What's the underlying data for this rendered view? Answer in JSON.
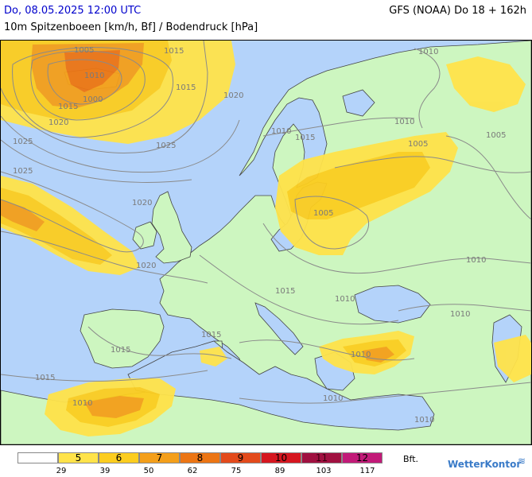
{
  "header": {
    "date": "Do, 08.05.2025 12:00 UTC",
    "model": "GFS (NOAA) Do 18 + 162h",
    "subtitle": "10m Spitzenboeen [km/h, Bf] / Bodendruck [hPa]"
  },
  "colors": {
    "sea": "#b4d3fa",
    "land": "#cdf6c0",
    "bf5": "#ffe34a",
    "bf6": "#fccd1f",
    "bf7": "#f49f1a",
    "bf8": "#ec7514",
    "isobar": "#8a8a8a",
    "border": "#444444"
  },
  "isobar_labels": [
    {
      "text": "1000"
    },
    {
      "text": "1005"
    },
    {
      "text": "1010"
    },
    {
      "text": "1015"
    },
    {
      "text": "1020"
    },
    {
      "text": "1025"
    },
    {
      "text": "1015"
    },
    {
      "text": "1025"
    },
    {
      "text": "1020"
    },
    {
      "text": "1015"
    },
    {
      "text": "1010"
    },
    {
      "text": "1010"
    },
    {
      "text": "1005"
    },
    {
      "text": "1005"
    },
    {
      "text": "1005"
    },
    {
      "text": "1010"
    },
    {
      "text": "1010"
    },
    {
      "text": "1015"
    },
    {
      "text": "1015"
    },
    {
      "text": "1015"
    },
    {
      "text": "1020"
    },
    {
      "text": "1010"
    },
    {
      "text": "1010"
    },
    {
      "text": "1010"
    },
    {
      "text": "1010"
    },
    {
      "text": "1015"
    },
    {
      "text": "1015"
    },
    {
      "text": "1010"
    },
    {
      "text": "1010"
    },
    {
      "text": "1025"
    },
    {
      "text": "1020"
    }
  ],
  "legend": {
    "unit": "Bft.",
    "cells": [
      {
        "label": "",
        "color": "#ffffff"
      },
      {
        "label": "5",
        "color": "#ffe34a"
      },
      {
        "label": "6",
        "color": "#fccd1f"
      },
      {
        "label": "7",
        "color": "#f49f1a"
      },
      {
        "label": "8",
        "color": "#ec7514"
      },
      {
        "label": "9",
        "color": "#e34a1b"
      },
      {
        "label": "10",
        "color": "#d6161f"
      },
      {
        "label": "11",
        "color": "#a01040"
      },
      {
        "label": "12",
        "color": "#c21a78"
      }
    ],
    "ticks": [
      "29",
      "39",
      "50",
      "62",
      "75",
      "89",
      "103",
      "117"
    ]
  },
  "brand": "WetterKontor"
}
